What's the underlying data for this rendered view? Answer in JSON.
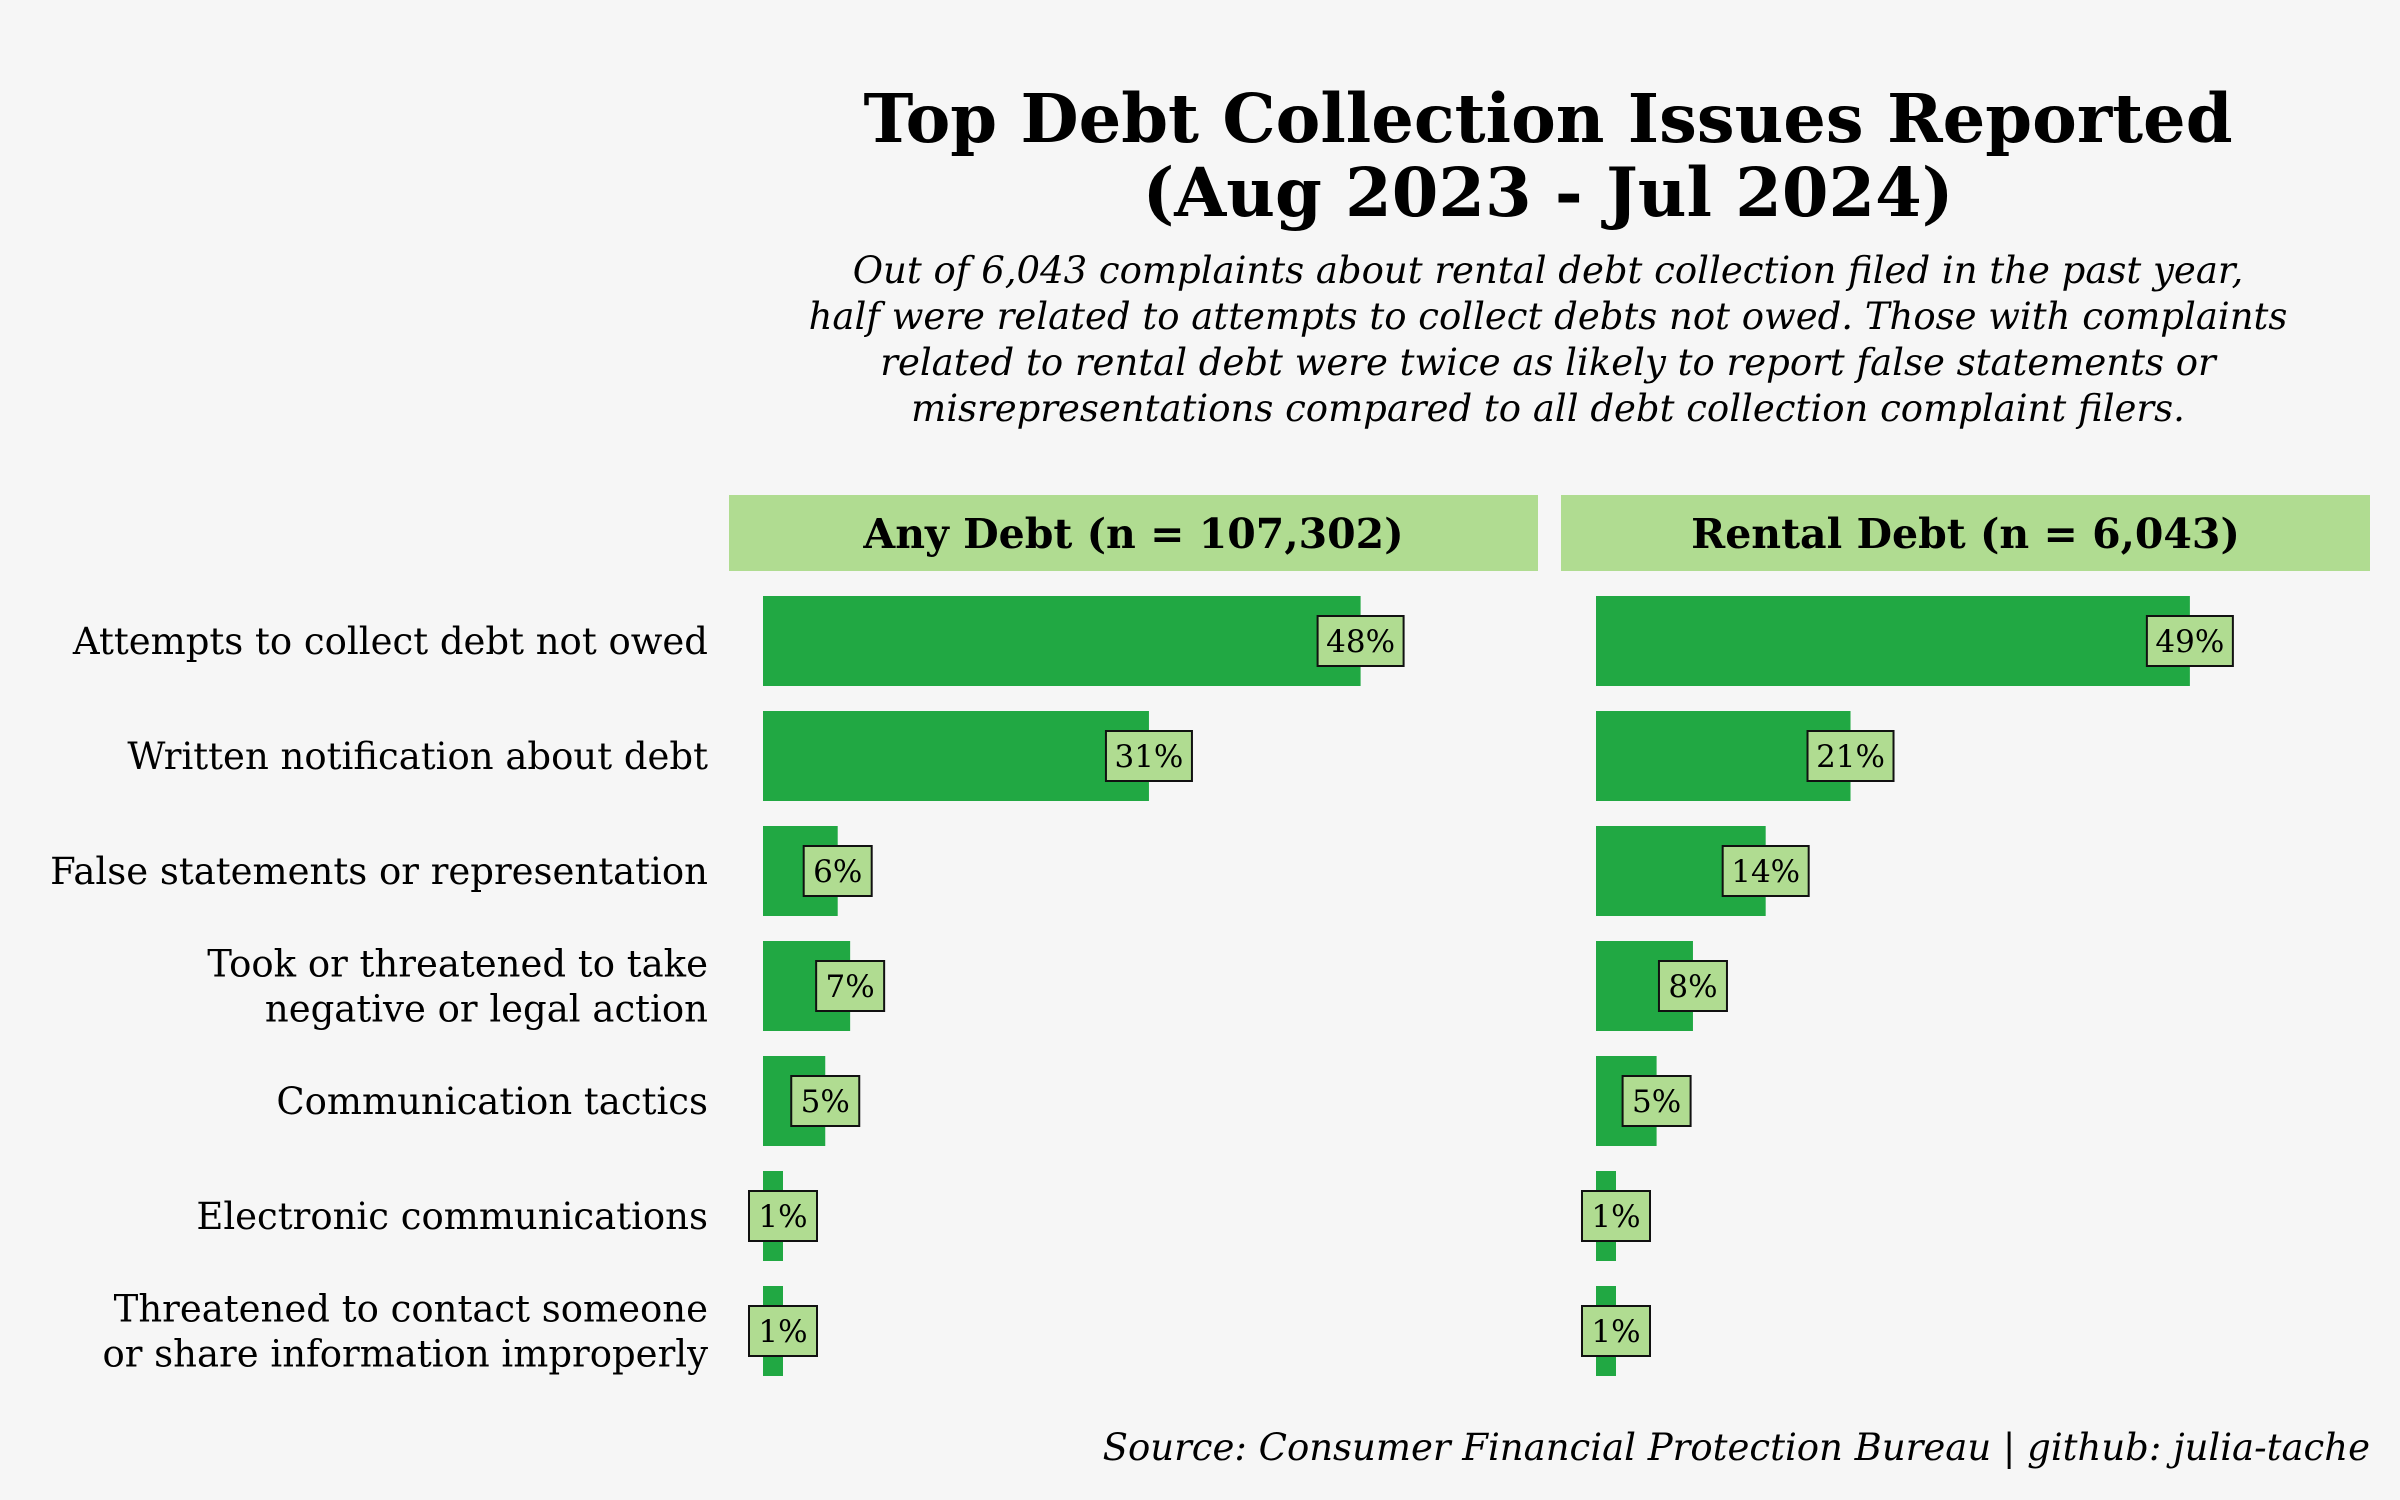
{
  "chart_data": {
    "type": "bar",
    "orientation": "horizontal",
    "title": "Top Debt Collection Issues Reported (Aug 2023 - Jul 2024)",
    "title_lines": [
      "Top Debt Collection Issues Reported",
      "(Aug 2023 - Jul 2024)"
    ],
    "subtitle_lines": [
      "Out of 6,043 complaints about rental debt collection filed in the past year,",
      "half were related to attempts to collect debts not owed. Those with complaints",
      "related to rental debt were twice as likely to report false statements or",
      "misrepresentations compared to all debt collection complaint filers."
    ],
    "categories": [
      [
        "Attempts to collect debt not owed"
      ],
      [
        "Written notification about debt"
      ],
      [
        "False statements or representation"
      ],
      [
        "Took or threatened to take",
        "negative or legal action"
      ],
      [
        "Communication tactics"
      ],
      [
        "Electronic communications"
      ],
      [
        "Threatened to contact someone",
        "or share information improperly"
      ]
    ],
    "series": [
      {
        "name": "Any Debt (n = 107,302)",
        "values": [
          48,
          31,
          6,
          7,
          5,
          1,
          1
        ],
        "labels": [
          "48%",
          "31%",
          "6%",
          "7%",
          "5%",
          "1%",
          "1%"
        ]
      },
      {
        "name": "Rental Debt (n = 6,043)",
        "values": [
          49,
          21,
          14,
          8,
          5,
          1,
          1
        ],
        "labels": [
          "49%",
          "21%",
          "14%",
          "8%",
          "5%",
          "1%",
          "1%"
        ]
      }
    ],
    "xlim": [
      0,
      50
    ],
    "unit": "%",
    "grid": false,
    "legend": "none",
    "source": "Source: Consumer Financial Protection Bureau | github: julia-tache"
  },
  "colors": {
    "background": "#f6f6f6",
    "bar": "#21a843",
    "strip": "#b0dc91",
    "label_box": "#b0dc91",
    "text": "#111111"
  }
}
